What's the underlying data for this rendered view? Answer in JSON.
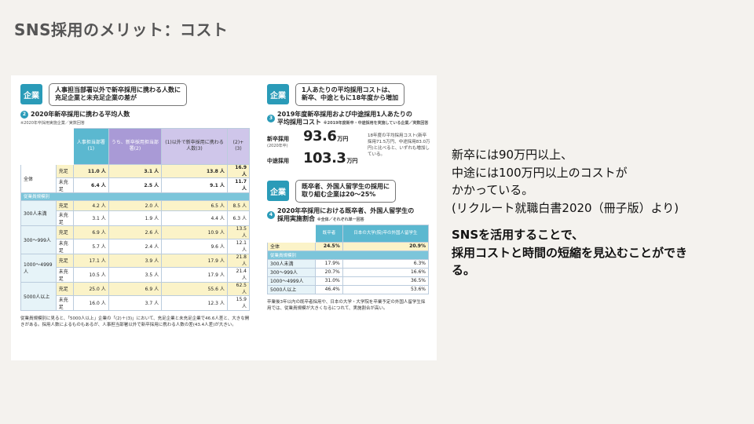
{
  "slide": {
    "title": "SNS採用のメリット：コスト"
  },
  "scan_left": {
    "badge": "企業",
    "callout": [
      "人事担当部署以外で新卒採用に携わる人数に",
      "充足企業と未充足企業の差が"
    ],
    "section_num": "2",
    "section_title": "2020年新卒採用に携わる平均人数",
    "note": "※2020年卒採用実施企業／実数回答",
    "headers": [
      "人事担当部署(1)",
      "うち、新卒採用担当部署(2)",
      "(1)以外で新卒採用に携わる人数(3)",
      "(2)+(3)"
    ],
    "overall_label": "全体",
    "overall_rows": [
      {
        "status": "充足",
        "values": [
          "11.0 人",
          "3.1 人",
          "13.8 人",
          "16.9 人"
        ]
      },
      {
        "status": "未充足",
        "values": [
          "6.4 人",
          "2.5 人",
          "9.1 人",
          "11.7 人"
        ]
      }
    ],
    "size_header": "従業員規模別",
    "size_groups": [
      {
        "label": "300人未満",
        "rows": [
          {
            "status": "充足",
            "values": [
              "4.2 人",
              "2.0 人",
              "6.5 人",
              "8.5 人"
            ]
          },
          {
            "status": "未充足",
            "values": [
              "3.1 人",
              "1.9 人",
              "4.4 人",
              "6.3 人"
            ]
          }
        ]
      },
      {
        "label": "300〜999人",
        "rows": [
          {
            "status": "充足",
            "values": [
              "6.9 人",
              "2.6 人",
              "10.9 人",
              "13.5 人"
            ]
          },
          {
            "status": "未充足",
            "values": [
              "5.7 人",
              "2.4 人",
              "9.6 人",
              "12.1 人"
            ]
          }
        ]
      },
      {
        "label": "1000〜4999人",
        "rows": [
          {
            "status": "充足",
            "values": [
              "17.1 人",
              "3.9 人",
              "17.9 人",
              "21.8 人"
            ]
          },
          {
            "status": "未充足",
            "values": [
              "10.5 人",
              "3.5 人",
              "17.9 人",
              "21.4 人"
            ]
          }
        ]
      },
      {
        "label": "5000人以上",
        "rows": [
          {
            "status": "充足",
            "values": [
              "25.0 人",
              "6.9 人",
              "55.6 人",
              "62.5 人"
            ]
          },
          {
            "status": "未充足",
            "values": [
              "16.0 人",
              "3.7 人",
              "12.3 人",
              "15.9 人"
            ]
          }
        ]
      }
    ],
    "paragraph": "従業員規模別に見ると、「5000人以上」企業の「(2)＋(3)」において、充足企業と未充足企業で46.6人差と、大きな開きがある。採用人数によるものもあるが、人事担当部署以外で新卒採用に携わる人数の差(43.4人差)が大きい。"
  },
  "scan_right": {
    "badge1": "企業",
    "callout1": [
      "1人あたりの平均採用コストは、",
      "新卒、中途ともに18年度から増加"
    ],
    "section3_num": "3",
    "section3_title": [
      "2019年度新卒採用および中途採用1人あたりの",
      "平均採用コスト"
    ],
    "section3_note": "※2019年度新卒・中途採用を実施している企業／実数回答",
    "new_label": "新卒採用",
    "new_sub": "(2020年卒)",
    "new_value": "93.6",
    "mid_label": "中途採用",
    "mid_value": "103.3",
    "unit": "万円",
    "cost_note": "18年度の平均採用コスト(新卒採用71.5万円、中途採用83.0万円)と比べると、いずれも増加している。",
    "badge2": "企業",
    "callout2": [
      "既卒者、外国人留学生の採用に",
      "取り組む企業は20〜25%"
    ],
    "section4_num": "4",
    "section4_title": [
      "2020年卒採用における既卒者、外国人留学生の",
      "採用実施割合"
    ],
    "section4_note": "※全体／それぞれ単一回答",
    "headers": [
      "既卒者",
      "日本の大学(院)卒の外国人留学生"
    ],
    "overall": {
      "label": "全体",
      "values": [
        "24.5%",
        "20.9%"
      ]
    },
    "size_header": "従業員規模別",
    "rows": [
      {
        "label": "300人未満",
        "values": [
          "17.9%",
          "6.3%"
        ]
      },
      {
        "label": "300〜999人",
        "values": [
          "20.7%",
          "16.6%"
        ]
      },
      {
        "label": "1000〜4999人",
        "values": [
          "31.0%",
          "36.5%"
        ]
      },
      {
        "label": "5000人以上",
        "values": [
          "46.4%",
          "53.6%"
        ]
      }
    ],
    "paragraph": "卒業後3年以内の既卒者採用や、日本の大学・大学院を卒業予定の外国人留学生採用では、従業員規模が大きくなるにつれて、実施割合が高い。"
  },
  "right_text": {
    "lines1": [
      "新卒には90万円以上、",
      "中途には100万円以上のコストが",
      "かかっている。",
      "(リクルート就職白書2020（冊子版）より)"
    ],
    "lines2": [
      "SNSを活用することで、",
      "採用コストと時間の短縮を見込むことができ",
      "る。"
    ]
  }
}
